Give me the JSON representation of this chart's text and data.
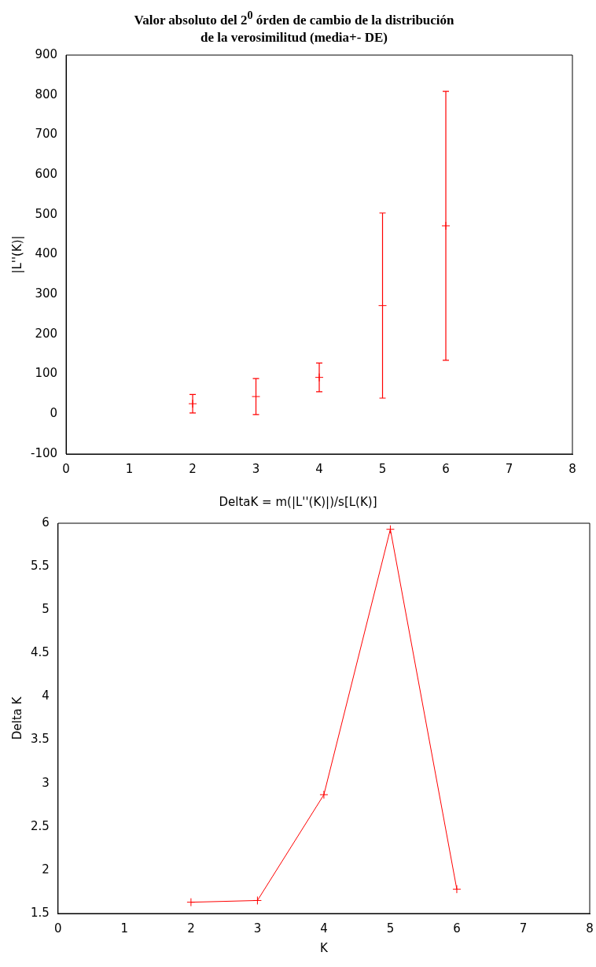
{
  "chart_data": [
    {
      "type": "scatter",
      "title": "Valor absoluto del 2$^{0}$ órden de cambio de la distribución de la verosimilitud (media+- DE)",
      "ylabel": "|L''(K)|",
      "x": [
        2,
        3,
        4,
        5,
        6
      ],
      "series": [
        {
          "color": "#ff0000",
          "values": [
            26,
            44,
            92,
            272,
            472
          ],
          "errors": [
            23,
            45,
            36,
            232,
            337
          ]
        }
      ],
      "xlim": [
        0,
        8
      ],
      "ylim": [
        -100,
        900
      ],
      "xticks": [
        0,
        1,
        2,
        3,
        4,
        5,
        6,
        7,
        8
      ],
      "yticks": [
        -100,
        0,
        100,
        200,
        300,
        400,
        500,
        600,
        700,
        800,
        900
      ],
      "grid": false,
      "marker": "cross"
    },
    {
      "type": "line",
      "title": "DeltaK = m(|L''(K)|)/s[L(K)]",
      "xlabel": "K",
      "ylabel": "Delta K",
      "x": [
        2,
        3,
        4,
        5,
        6
      ],
      "series": [
        {
          "color": "#ff0000",
          "values": [
            1.63,
            1.65,
            2.87,
            5.93,
            1.78
          ]
        }
      ],
      "xlim": [
        0,
        8
      ],
      "ylim": [
        1.5,
        6
      ],
      "xticks": [
        0,
        1,
        2,
        3,
        4,
        5,
        6,
        7,
        8
      ],
      "yticks": [
        1.5,
        2,
        2.5,
        3,
        3.5,
        4,
        4.5,
        5,
        5.5,
        6
      ],
      "grid": false,
      "marker": "cross",
      "line_style": "solid"
    }
  ]
}
